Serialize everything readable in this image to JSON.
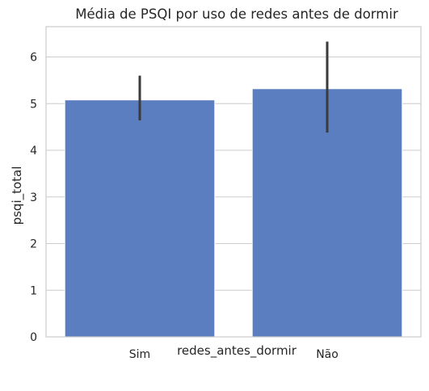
{
  "chart_data": {
    "type": "bar",
    "title": "Média de PSQI por uso de redes antes de dormir",
    "xlabel": "redes_antes_dormir",
    "ylabel": "psqi_total",
    "categories": [
      "Sim",
      "Não"
    ],
    "values": [
      5.08,
      5.32
    ],
    "error_low": [
      4.64,
      4.38
    ],
    "error_high": [
      5.6,
      6.33
    ],
    "ylim": [
      0,
      6.65
    ],
    "yticks": [
      0,
      1,
      2,
      3,
      4,
      5,
      6
    ],
    "grid": "horizontal",
    "bar_color": "#5b7ec1",
    "error_color": "#3b3b3b",
    "grid_color": "#cccccc"
  }
}
